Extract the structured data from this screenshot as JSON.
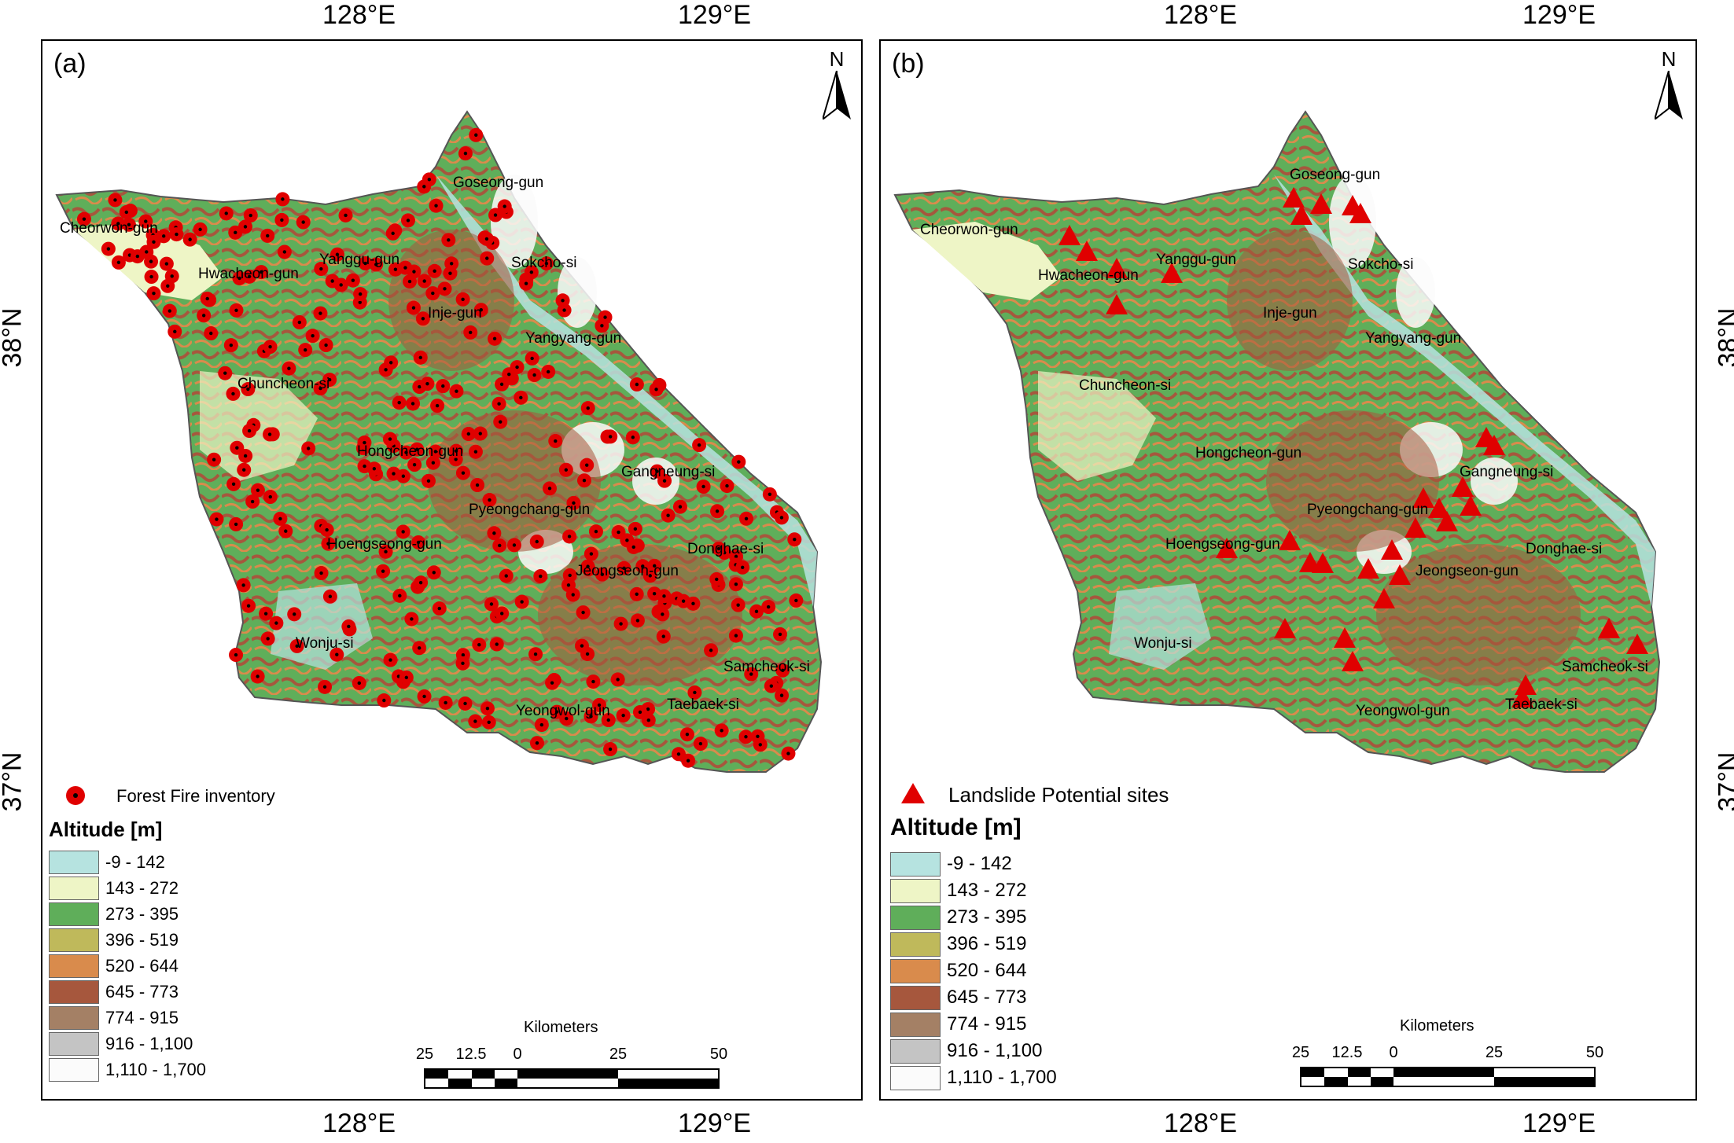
{
  "graticule": {
    "lon_left": "128°E",
    "lon_right": "129°E",
    "lat_top": "38°N",
    "lat_bottom": "37°N"
  },
  "north_arrow": "N",
  "panels": [
    {
      "id": "a",
      "label": "(a)",
      "places": [
        "Cheorwon-gun",
        "Hwacheon-gun",
        "Yanggu-gun",
        "Goseong-gun",
        "Sokcho-si",
        "Inje-gun",
        "Yangyang-gun",
        "Chuncheon-si",
        "Hongcheon-gun",
        "Gangneung-si",
        "Pyeongchang-gun",
        "Hoengseong-gun",
        "Donghae-si",
        "Jeongseon-gun",
        "Wonju-si",
        "Samcheok-si",
        "Yeongwol-gun",
        "Taebaek-si"
      ],
      "legend_symbol": "Forest Fire inventory",
      "legend_title": "Altitude [m]"
    },
    {
      "id": "b",
      "label": "(b)",
      "places": [
        "Goseong-gun",
        "Cheorwon-gun",
        "Yanggu-gun",
        "Sokcho-si",
        "Hwacheon-gun",
        "Inje-gun",
        "Yangyang-gun",
        "Chuncheon-si",
        "Hongcheon-gun",
        "Gangneung-si",
        "Pyeongchang-gun",
        "Hoengseong-gun",
        "Donghae-si",
        "Jeongseon-gun",
        "Wonju-si",
        "Samcheok-si",
        "Yeongwol-gun",
        "Taebaek-si"
      ],
      "legend_symbol": "Landslide Potential sites",
      "legend_title": "Altitude [m]"
    }
  ],
  "altitude_classes": [
    {
      "label": "-9 - 142",
      "color": "#b6e3e0"
    },
    {
      "label": "143 - 272",
      "color": "#eef5c6"
    },
    {
      "label": "273 - 395",
      "color": "#5fae5a"
    },
    {
      "label": "396 - 519",
      "color": "#bfb95b"
    },
    {
      "label": "520 - 644",
      "color": "#d98b4c"
    },
    {
      "label": "645 - 773",
      "color": "#a6573d"
    },
    {
      "label": "774 - 915",
      "color": "#a48065"
    },
    {
      "label": "916 - 1,100",
      "color": "#c4c4c4"
    },
    {
      "label": "1,110 - 1,700",
      "color": "#fbfbfb"
    }
  ],
  "scale": {
    "title": "Kilometers",
    "ticks": [
      "25",
      "12.5",
      "0",
      "25",
      "50"
    ]
  },
  "markers": {
    "fire_color": "#e00000",
    "landslide_color": "#e00000"
  }
}
